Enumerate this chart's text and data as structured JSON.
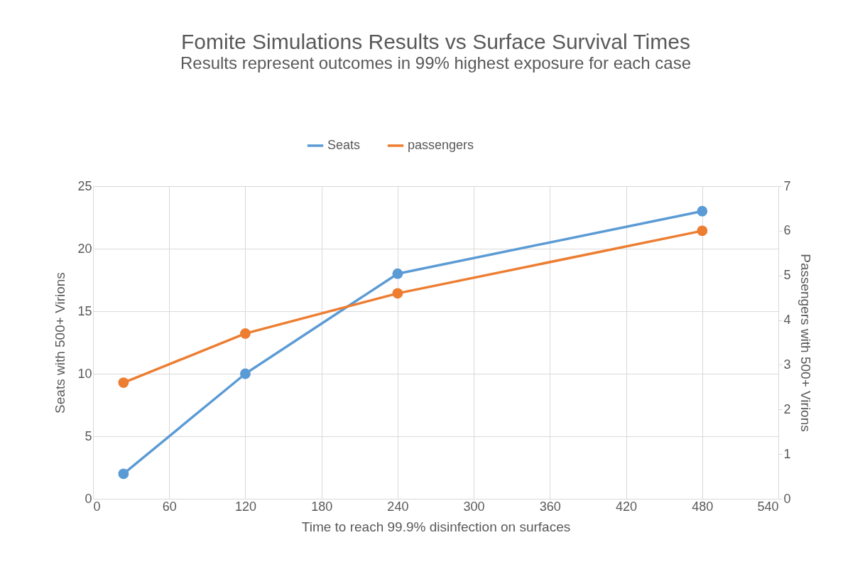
{
  "chart_data": {
    "type": "line",
    "title": "Fomite Simulations Results vs Surface Survival Times",
    "subtitle": "Results represent outcomes in 99% highest exposure for each case",
    "xlabel": "Time to reach 99.9% disinfection on surfaces",
    "ylabel": "Seats with 500+ Virions",
    "y2label": "Passengers with 500+ Virions",
    "x": [
      24,
      120,
      240,
      480
    ],
    "series": [
      {
        "name": "Seats",
        "color": "#5b9bd5",
        "values": [
          2,
          10,
          18,
          23
        ]
      },
      {
        "name": "passengers",
        "color": "#ed7d31",
        "values": [
          2.6,
          3.7,
          4.6,
          6.0
        ],
        "axis": "y2"
      }
    ],
    "xlim": [
      0,
      540
    ],
    "xticks": [
      0,
      60,
      120,
      180,
      240,
      300,
      360,
      420,
      480,
      540
    ],
    "ylim": [
      0,
      25
    ],
    "yticks": [
      0,
      5,
      10,
      15,
      20,
      25
    ],
    "y2lim": [
      0,
      7
    ],
    "y2ticks": [
      0,
      1,
      2,
      3,
      4,
      5,
      6,
      7
    ],
    "grid": true,
    "legend": "top",
    "marker": "circle",
    "line_style": "solid"
  }
}
